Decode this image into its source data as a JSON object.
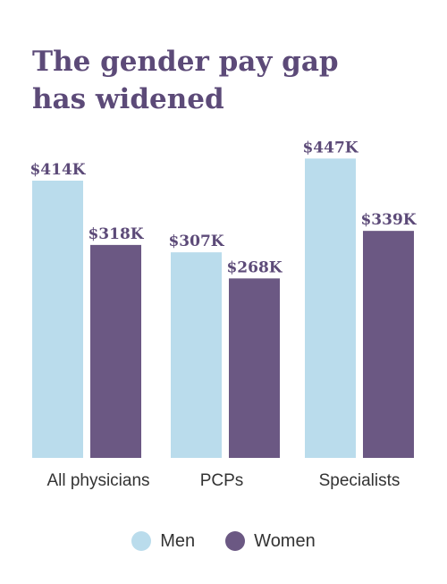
{
  "chart_data": {
    "type": "bar",
    "title": [
      "The gender pay gap",
      "has widened"
    ],
    "categories": [
      "All physicians",
      "PCPs",
      "Specialists"
    ],
    "series": [
      {
        "name": "Men",
        "values": [
          414,
          307,
          447
        ],
        "labels": [
          "$414K",
          "$307K",
          "$447K"
        ],
        "color": "#badcec"
      },
      {
        "name": "Women",
        "values": [
          318,
          268,
          339
        ],
        "labels": [
          "$318K",
          "$268K",
          "$339K"
        ],
        "color": "#6b5883"
      }
    ],
    "ylim": [
      0,
      550
    ],
    "grid": false,
    "legend": "bottom"
  }
}
